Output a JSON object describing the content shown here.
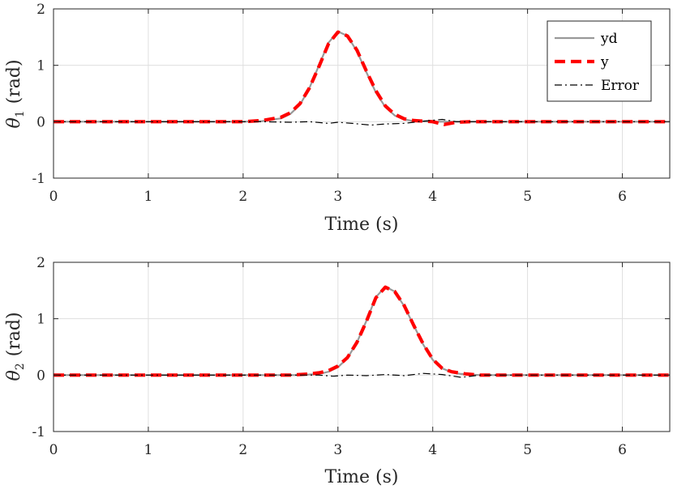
{
  "chart_data": [
    {
      "type": "line",
      "xlabel": "Time (s)",
      "ylabel_symbol": "θ",
      "ylabel_sub": "1",
      "ylabel_unit": "(rad)",
      "xlim": [
        0,
        6.5
      ],
      "ylim": [
        -1,
        2
      ],
      "xticks": [
        "0",
        "1",
        "2",
        "3",
        "4",
        "5",
        "6"
      ],
      "yticks": [
        "-1",
        "0",
        "1",
        "2"
      ],
      "grid": true,
      "legend": {
        "placement": "top-right",
        "entries": [
          "yd",
          "y",
          "Error"
        ]
      },
      "series": [
        {
          "name": "yd",
          "color": "#999999",
          "style": "solid",
          "x": [
            0,
            2.0,
            2.2,
            2.4,
            2.5,
            2.6,
            2.7,
            2.8,
            2.9,
            3.0,
            3.1,
            3.2,
            3.3,
            3.4,
            3.5,
            3.6,
            3.7,
            3.8,
            4.0,
            4.2,
            6.5
          ],
          "y": [
            0,
            0,
            0.01,
            0.06,
            0.14,
            0.3,
            0.6,
            1.0,
            1.4,
            1.6,
            1.52,
            1.25,
            0.88,
            0.52,
            0.26,
            0.11,
            0.04,
            0.01,
            0,
            0,
            0
          ]
        },
        {
          "name": "y",
          "color": "#ff0000",
          "style": "dashed",
          "x": [
            0,
            2.0,
            2.2,
            2.4,
            2.5,
            2.6,
            2.7,
            2.8,
            2.9,
            3.0,
            3.1,
            3.2,
            3.3,
            3.4,
            3.5,
            3.6,
            3.7,
            3.8,
            4.0,
            4.12,
            4.25,
            4.4,
            6.5
          ],
          "y": [
            0,
            0,
            0.02,
            0.08,
            0.16,
            0.32,
            0.6,
            0.98,
            1.38,
            1.59,
            1.52,
            1.27,
            0.9,
            0.55,
            0.28,
            0.13,
            0.05,
            0.02,
            0,
            -0.05,
            -0.01,
            0,
            0
          ]
        },
        {
          "name": "Error",
          "color": "#000000",
          "style": "dashdot",
          "x": [
            0,
            2.2,
            2.5,
            2.7,
            2.9,
            3.0,
            3.15,
            3.35,
            3.5,
            3.7,
            3.9,
            4.1,
            4.25,
            4.45,
            6.5
          ],
          "y": [
            0,
            0,
            -0.01,
            0.0,
            -0.03,
            -0.01,
            -0.03,
            -0.06,
            -0.04,
            -0.03,
            0.01,
            0.04,
            0.0,
            0.0,
            0
          ]
        }
      ]
    },
    {
      "type": "line",
      "xlabel": "Time (s)",
      "ylabel_symbol": "θ",
      "ylabel_sub": "2",
      "ylabel_unit": "(rad)",
      "xlim": [
        0,
        6.5
      ],
      "ylim": [
        -1,
        2
      ],
      "xticks": [
        "0",
        "1",
        "2",
        "3",
        "4",
        "5",
        "6"
      ],
      "yticks": [
        "-1",
        "0",
        "1",
        "2"
      ],
      "grid": true,
      "series": [
        {
          "name": "yd",
          "color": "#999999",
          "style": "solid",
          "x": [
            0,
            2.6,
            2.8,
            2.9,
            3.0,
            3.1,
            3.2,
            3.3,
            3.4,
            3.5,
            3.6,
            3.7,
            3.8,
            3.9,
            4.0,
            4.1,
            4.2,
            4.3,
            4.5,
            6.5
          ],
          "y": [
            0,
            0,
            0.02,
            0.06,
            0.14,
            0.3,
            0.58,
            0.96,
            1.38,
            1.57,
            1.48,
            1.22,
            0.88,
            0.54,
            0.27,
            0.12,
            0.05,
            0.02,
            0,
            0
          ]
        },
        {
          "name": "y",
          "color": "#ff0000",
          "style": "dashed",
          "x": [
            0,
            2.5,
            2.7,
            2.8,
            2.9,
            3.0,
            3.1,
            3.2,
            3.3,
            3.4,
            3.5,
            3.6,
            3.7,
            3.8,
            3.9,
            4.0,
            4.1,
            4.2,
            4.35,
            4.5,
            6.5
          ],
          "y": [
            0,
            0,
            0.02,
            0.04,
            0.08,
            0.16,
            0.31,
            0.58,
            0.95,
            1.37,
            1.56,
            1.48,
            1.23,
            0.88,
            0.55,
            0.28,
            0.12,
            0.06,
            0.02,
            0,
            0
          ]
        },
        {
          "name": "Error",
          "color": "#000000",
          "style": "dashdot",
          "x": [
            0,
            2.8,
            2.95,
            3.1,
            3.3,
            3.5,
            3.7,
            3.9,
            4.1,
            4.3,
            4.5,
            6.5
          ],
          "y": [
            0,
            0,
            -0.02,
            0.0,
            -0.01,
            0.01,
            -0.01,
            0.03,
            0.01,
            -0.04,
            0,
            0
          ]
        }
      ]
    }
  ]
}
